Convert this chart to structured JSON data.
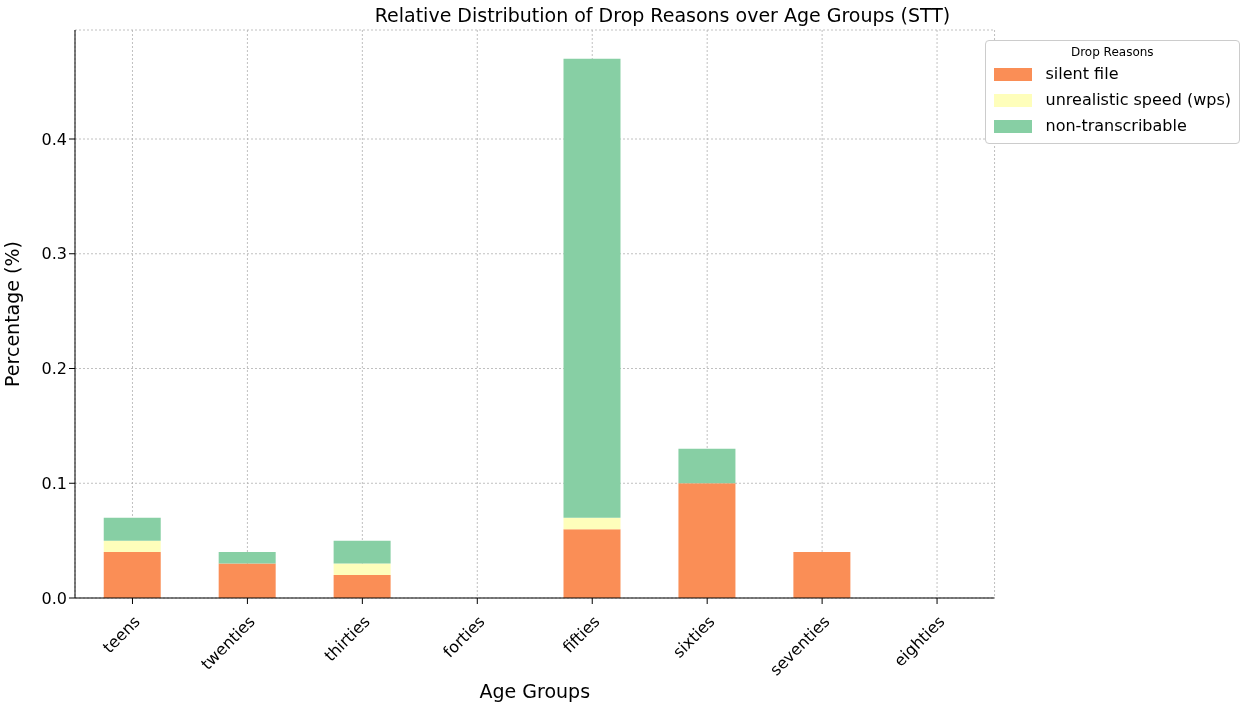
{
  "chart_data": {
    "type": "bar",
    "title": "Relative Distribution of Drop Reasons over Age Groups (STT)",
    "xlabel": "Age Groups",
    "ylabel": "Percentage (%)",
    "legend_title": "Drop Reasons",
    "categories": [
      "teens",
      "twenties",
      "thirties",
      "forties",
      "fifties",
      "sixties",
      "seventies",
      "eighties"
    ],
    "series": [
      {
        "name": "silent file",
        "color": "#fa8e56",
        "values": [
          0.04,
          0.03,
          0.02,
          0,
          0.06,
          0.1,
          0.04,
          0
        ]
      },
      {
        "name": "unrealistic speed (wps)",
        "color": "#fefebb",
        "values": [
          0.01,
          0,
          0.01,
          0,
          0.01,
          0,
          0,
          0
        ]
      },
      {
        "name": "non-transcribable",
        "color": "#87cfa4",
        "values": [
          0.02,
          0.01,
          0.02,
          0,
          0.4,
          0.03,
          0,
          0
        ]
      }
    ],
    "stacked": true,
    "ylim": [
      0,
      0.495
    ],
    "yticks": [
      {
        "value": 0,
        "label": "0.0"
      },
      0.1,
      0.2,
      0.3,
      0.4
    ],
    "grid": true,
    "legend": "top right"
  }
}
